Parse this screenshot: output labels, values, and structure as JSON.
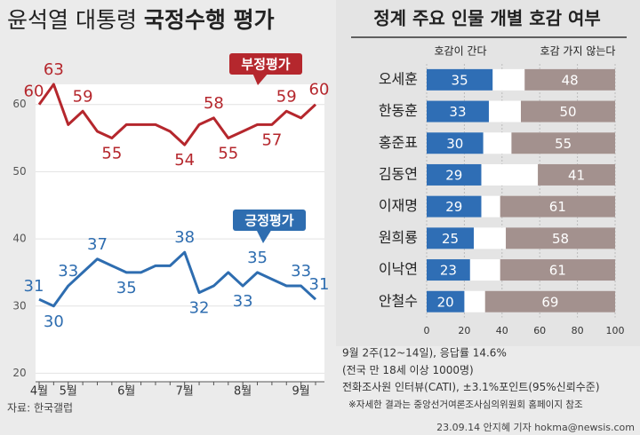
{
  "chart_data": [
    {
      "type": "line",
      "title": {
        "regular": "윤석열 대통령",
        "bold": "국정수행 평가"
      },
      "categories": [
        "4월",
        null,
        "5월",
        null,
        null,
        null,
        "6월",
        null,
        null,
        null,
        "7월",
        null,
        null,
        null,
        "8월",
        null,
        null,
        null,
        "9월",
        null
      ],
      "series": [
        {
          "name": "부정평가",
          "color": "#b5272d",
          "values": [
            60,
            63,
            57,
            59,
            56,
            55,
            57,
            57,
            57,
            56,
            54,
            57,
            58,
            55,
            56,
            57,
            57,
            59,
            58,
            60
          ],
          "value_labels": [
            "60",
            "63",
            null,
            "59",
            null,
            "55",
            null,
            null,
            null,
            null,
            "54",
            null,
            "58",
            "55",
            null,
            null,
            "57",
            "59",
            null,
            "60"
          ]
        },
        {
          "name": "긍정평가",
          "color": "#2e6db0",
          "values": [
            31,
            30,
            33,
            35,
            37,
            36,
            35,
            35,
            36,
            36,
            38,
            32,
            33,
            35,
            33,
            35,
            34,
            33,
            33,
            31
          ],
          "value_labels": [
            "31",
            "30",
            "33",
            null,
            "37",
            null,
            "35",
            null,
            null,
            null,
            "38",
            "32",
            null,
            null,
            "33",
            "35",
            null,
            null,
            "33",
            "31"
          ]
        }
      ],
      "ylim": [
        19,
        63
      ],
      "yticks": [
        20,
        30,
        40,
        50,
        60
      ],
      "grid": true,
      "source": "자료: 한국갤럽"
    },
    {
      "type": "bar",
      "orientation": "horizontal",
      "title": "정계 주요 인물 개별 호감 여부",
      "categories": [
        "오세훈",
        "한동훈",
        "홍준표",
        "김동연",
        "이재명",
        "원희룡",
        "이낙연",
        "안철수"
      ],
      "series": [
        {
          "name": "호감이 간다",
          "color": "#2f6eb5",
          "values": [
            35,
            33,
            30,
            29,
            29,
            25,
            23,
            20
          ]
        },
        {
          "name": "호감 가지 않는다",
          "color": "#a3918e",
          "values": [
            48,
            50,
            55,
            41,
            61,
            58,
            61,
            69
          ],
          "anchor": "right"
        }
      ],
      "xlim": [
        0,
        100
      ],
      "xticks": [
        0,
        20,
        40,
        60,
        80,
        100
      ],
      "notes": [
        "9월 2주(12~14일), 응답률 14.6%",
        "(전국 만 18세 이상 1000명)",
        "전화조사원 인터뷰(CATI), ±3.1%포인트(95%신뢰수준)",
        "※자세한 결과는 중앙선거여론조사심의위원회 홈페이지 참조"
      ]
    }
  ],
  "credit": "23.09.14 안지혜 기자 hokma@newsis.com"
}
